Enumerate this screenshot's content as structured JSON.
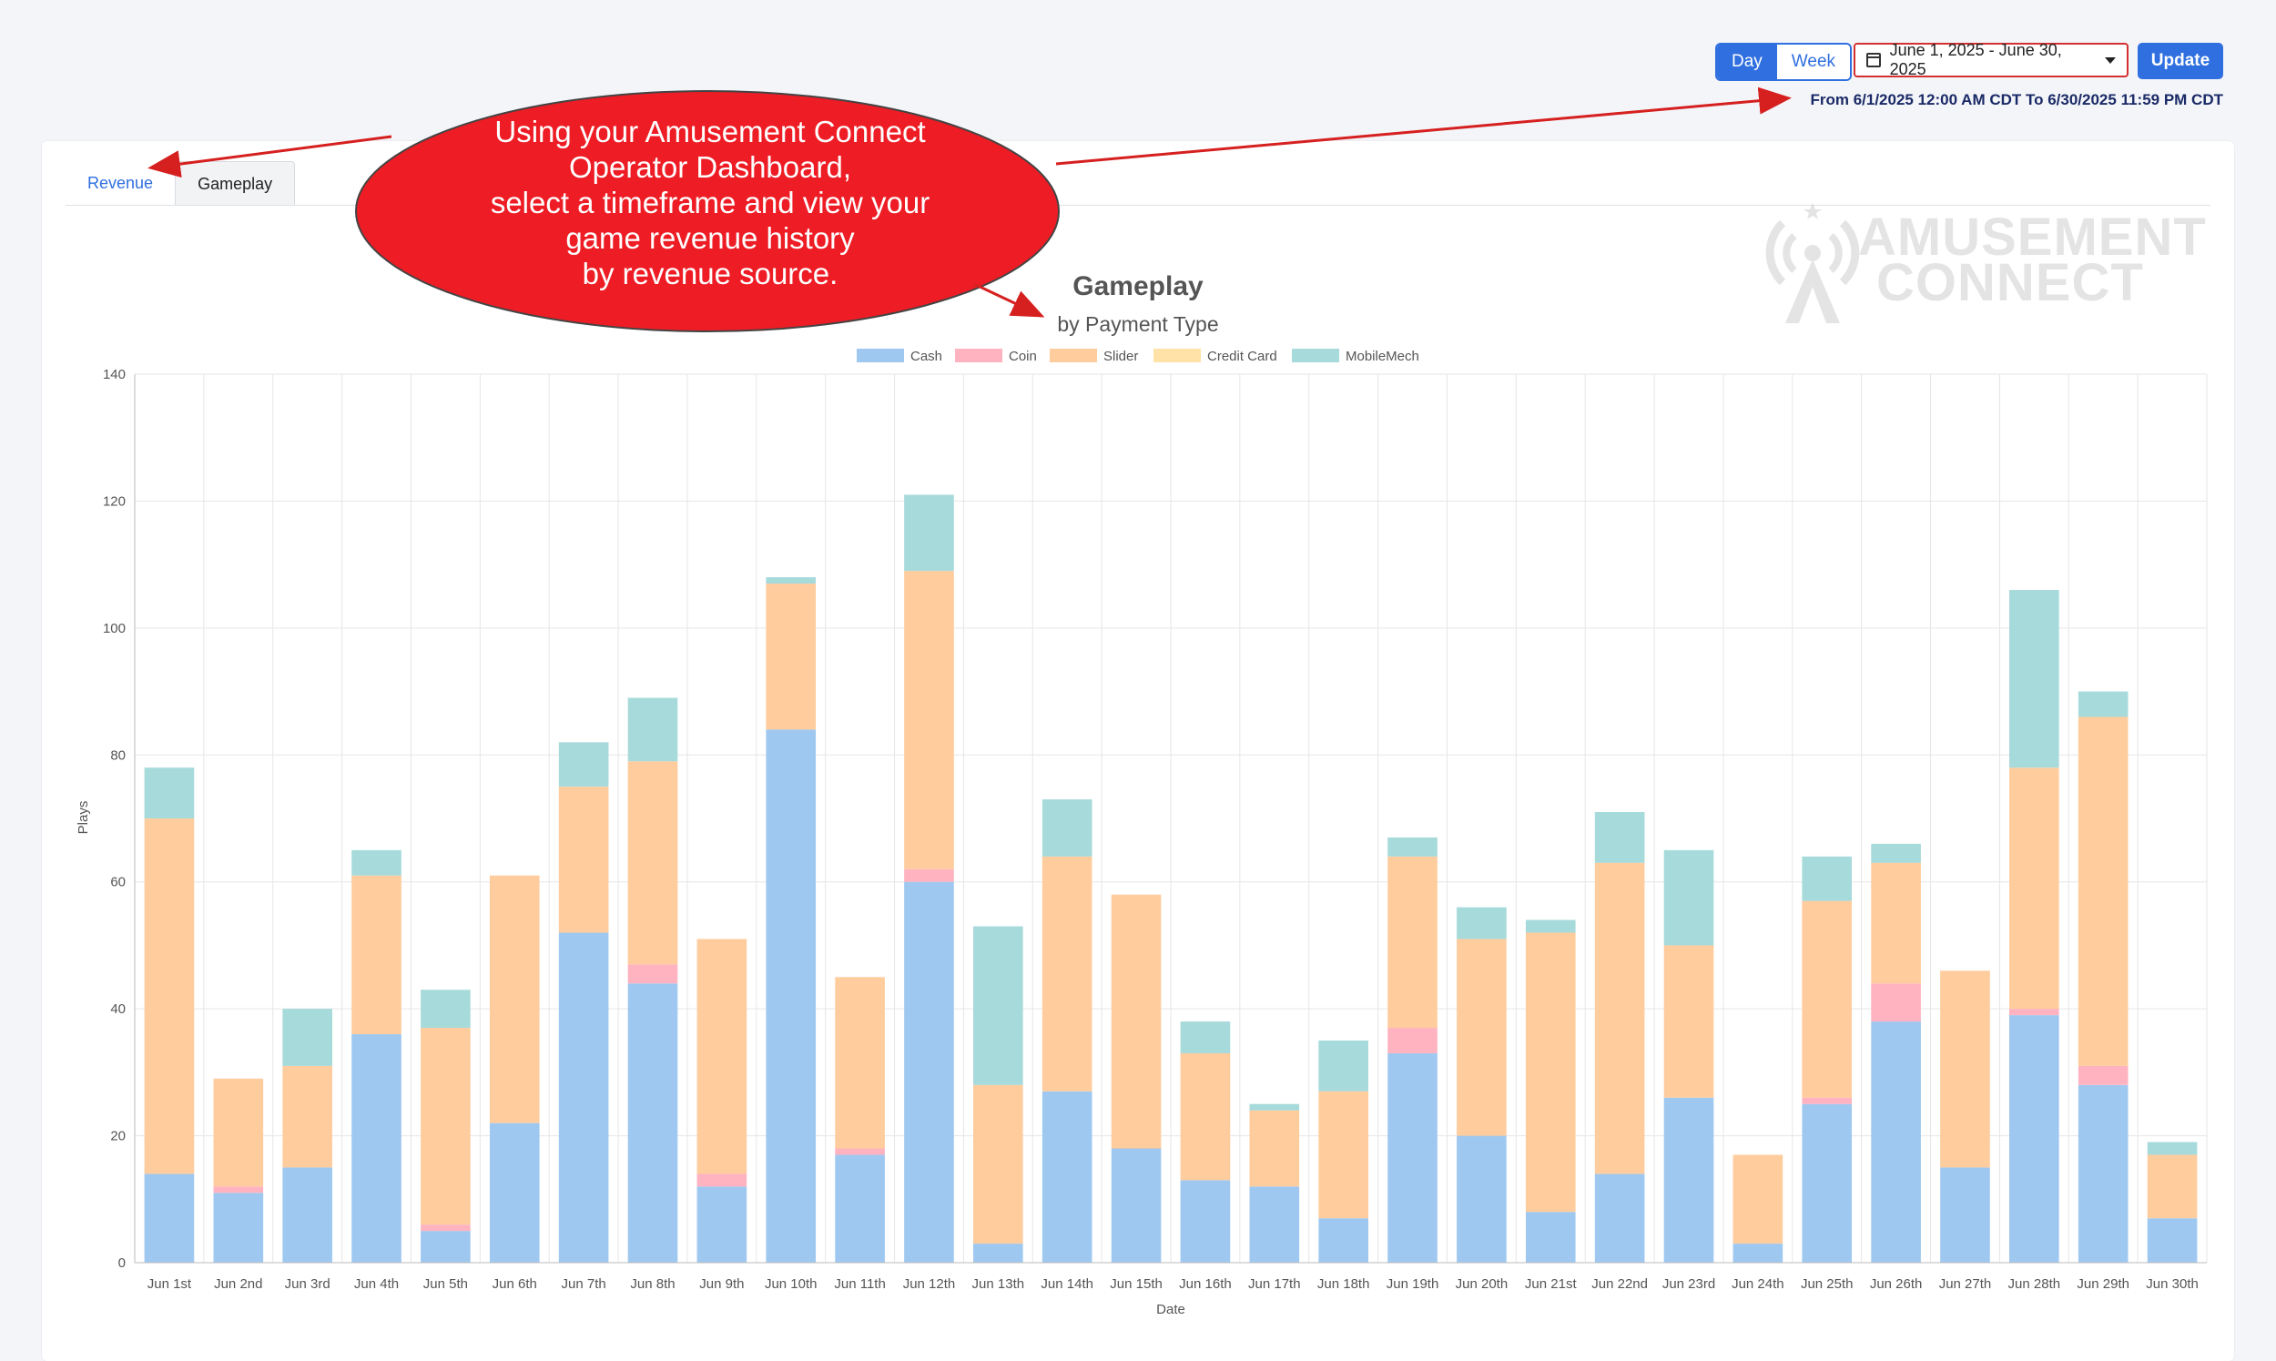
{
  "controls": {
    "day_label": "Day",
    "week_label": "Week",
    "date_range_label": "June 1, 2025 - June 30, 2025",
    "update_label": "Update",
    "range_text": "From 6/1/2025 12:00 AM CDT To 6/30/2025 11:59 PM CDT"
  },
  "tabs": {
    "revenue": "Revenue",
    "gameplay": "Gameplay"
  },
  "logo": {
    "line1": "AMUSEMENT",
    "line2": "CONNECT"
  },
  "callout": {
    "lines": [
      "Using your Amusement Connect",
      "Operator Dashboard,",
      "select a timeframe and view your",
      "game revenue history",
      "by revenue source."
    ]
  },
  "colors": {
    "cash": "#9fc8f0",
    "coin": "#ffb3c0",
    "slider": "#ffcc9e",
    "credit_card": "#ffe2a8",
    "mobilemech": "#a7dadb",
    "callout": "#ee1c24",
    "arrow": "#d62020"
  },
  "chart_data": {
    "type": "bar",
    "stacked": true,
    "title": "Gameplay",
    "subtitle": "by Payment Type",
    "xlabel": "Date",
    "ylabel": "Plays",
    "ylim": [
      0,
      140
    ],
    "yticks": [
      0,
      20,
      40,
      60,
      80,
      100,
      120,
      140
    ],
    "grid": true,
    "legend_position": "top-center",
    "categories": [
      "Jun 1st",
      "Jun 2nd",
      "Jun 3rd",
      "Jun 4th",
      "Jun 5th",
      "Jun 6th",
      "Jun 7th",
      "Jun 8th",
      "Jun 9th",
      "Jun 10th",
      "Jun 11th",
      "Jun 12th",
      "Jun 13th",
      "Jun 14th",
      "Jun 15th",
      "Jun 16th",
      "Jun 17th",
      "Jun 18th",
      "Jun 19th",
      "Jun 20th",
      "Jun 21st",
      "Jun 22nd",
      "Jun 23rd",
      "Jun 24th",
      "Jun 25th",
      "Jun 26th",
      "Jun 27th",
      "Jun 28th",
      "Jun 29th",
      "Jun 30th"
    ],
    "series": [
      {
        "name": "Cash",
        "values": [
          14,
          11,
          15,
          36,
          5,
          22,
          52,
          44,
          12,
          84,
          17,
          60,
          3,
          27,
          18,
          13,
          12,
          7,
          33,
          20,
          8,
          14,
          26,
          3,
          25,
          38,
          15,
          39,
          28,
          7
        ]
      },
      {
        "name": "Coin",
        "values": [
          0,
          1,
          0,
          0,
          1,
          0,
          0,
          3,
          2,
          0,
          1,
          2,
          0,
          0,
          0,
          0,
          0,
          0,
          4,
          0,
          0,
          0,
          0,
          0,
          1,
          6,
          0,
          1,
          3,
          0
        ]
      },
      {
        "name": "Slider",
        "values": [
          56,
          17,
          16,
          25,
          31,
          39,
          23,
          32,
          37,
          23,
          27,
          47,
          25,
          37,
          40,
          20,
          12,
          20,
          27,
          31,
          44,
          49,
          24,
          14,
          31,
          19,
          31,
          38,
          55,
          10
        ]
      },
      {
        "name": "Credit Card",
        "values": [
          0,
          0,
          0,
          0,
          0,
          0,
          0,
          0,
          0,
          0,
          0,
          0,
          0,
          0,
          0,
          0,
          0,
          0,
          0,
          0,
          0,
          0,
          0,
          0,
          0,
          0,
          0,
          0,
          0,
          0
        ]
      },
      {
        "name": "MobileMech",
        "values": [
          8,
          0,
          9,
          4,
          6,
          0,
          7,
          10,
          0,
          1,
          0,
          12,
          25,
          9,
          0,
          5,
          1,
          8,
          3,
          5,
          2,
          8,
          15,
          0,
          7,
          3,
          0,
          28,
          4,
          2
        ]
      }
    ]
  }
}
